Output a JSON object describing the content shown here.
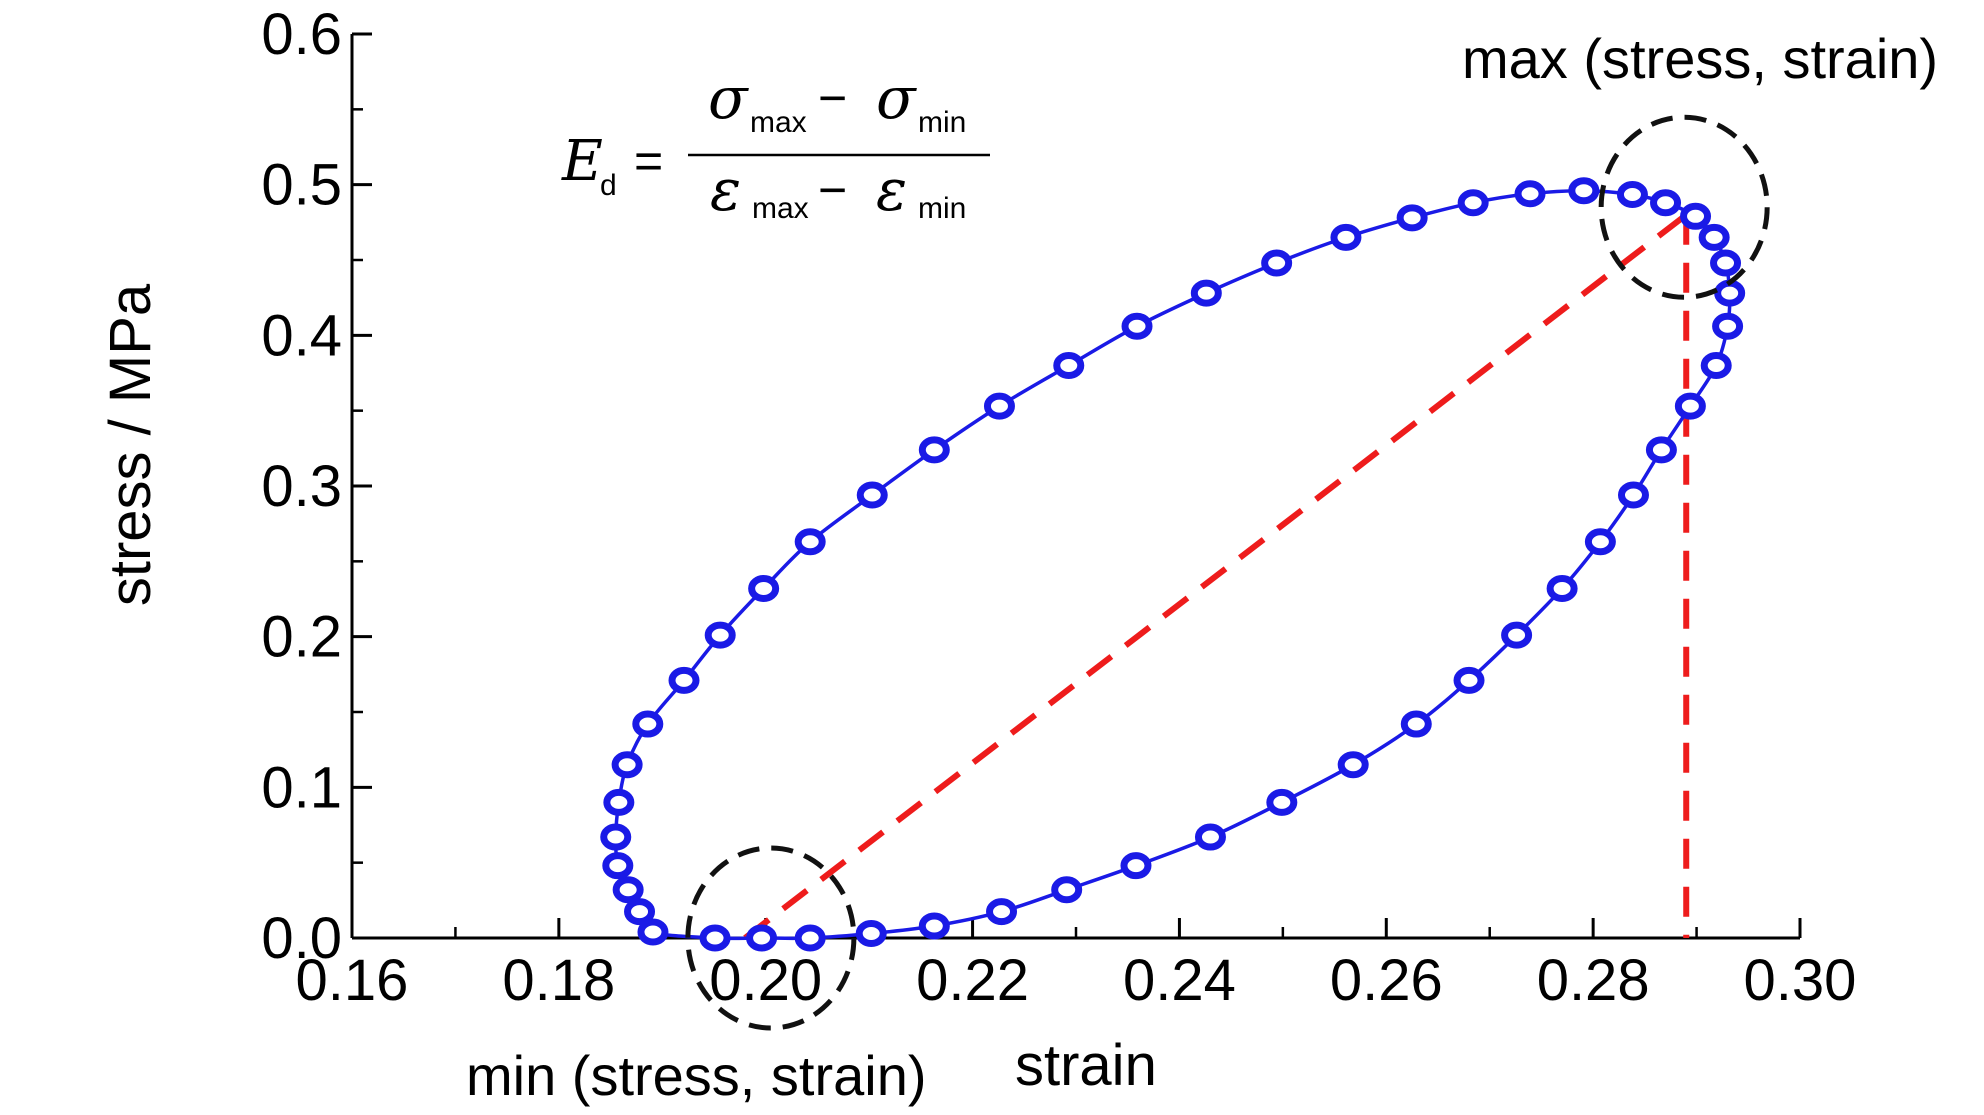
{
  "chart_data": {
    "type": "scatter",
    "xlabel": "strain",
    "ylabel": "stress / MPa",
    "xlim": [
      0.16,
      0.3
    ],
    "ylim": [
      0.0,
      0.6
    ],
    "x_ticks": [
      "0.16",
      "0.18",
      "0.20",
      "0.22",
      "0.24",
      "0.26",
      "0.28",
      "0.30"
    ],
    "y_ticks": [
      "0.0",
      "0.1",
      "0.2",
      "0.3",
      "0.4",
      "0.5",
      "0.6"
    ],
    "grid": false,
    "series": [
      {
        "style": "line with hollow circle markers",
        "color": "#1a1ae6",
        "points": [
          [
            0.1951,
            0.0
          ],
          [
            0.1891,
            0.004
          ],
          [
            0.1878,
            0.0175
          ],
          [
            0.1867,
            0.032
          ],
          [
            0.1857,
            0.048
          ],
          [
            0.1855,
            0.067
          ],
          [
            0.1858,
            0.09
          ],
          [
            0.1866,
            0.115
          ],
          [
            0.1886,
            0.142
          ],
          [
            0.1921,
            0.171
          ],
          [
            0.1956,
            0.201
          ],
          [
            0.1998,
            0.232
          ],
          [
            0.2043,
            0.263
          ],
          [
            0.2103,
            0.294
          ],
          [
            0.2163,
            0.324
          ],
          [
            0.2226,
            0.353
          ],
          [
            0.2293,
            0.38
          ],
          [
            0.2359,
            0.406
          ],
          [
            0.2426,
            0.428
          ],
          [
            0.2494,
            0.448
          ],
          [
            0.2561,
            0.465
          ],
          [
            0.2625,
            0.478
          ],
          [
            0.2684,
            0.488
          ],
          [
            0.2739,
            0.494
          ],
          [
            0.2791,
            0.496
          ],
          [
            0.2838,
            0.4935
          ],
          [
            0.287,
            0.488
          ],
          [
            0.2899,
            0.479
          ],
          [
            0.2917,
            0.465
          ],
          [
            0.2928,
            0.448
          ],
          [
            0.2932,
            0.428
          ],
          [
            0.293,
            0.406
          ],
          [
            0.2919,
            0.38
          ],
          [
            0.2894,
            0.353
          ],
          [
            0.2866,
            0.324
          ],
          [
            0.2839,
            0.294
          ],
          [
            0.2807,
            0.263
          ],
          [
            0.277,
            0.232
          ],
          [
            0.2726,
            0.201
          ],
          [
            0.268,
            0.171
          ],
          [
            0.2629,
            0.142
          ],
          [
            0.2568,
            0.115
          ],
          [
            0.2499,
            0.09
          ],
          [
            0.243,
            0.067
          ],
          [
            0.2358,
            0.048
          ],
          [
            0.2291,
            0.032
          ],
          [
            0.2228,
            0.0175
          ],
          [
            0.2163,
            0.008
          ],
          [
            0.2102,
            0.003
          ],
          [
            0.2043,
            0.0
          ],
          [
            0.1996,
            0.0
          ]
        ]
      },
      {
        "style": "dashed diagonal",
        "color": "#ee1c1c",
        "points": [
          [
            0.198,
            0.0
          ],
          [
            0.289,
            0.48
          ]
        ]
      },
      {
        "style": "dashed vertical",
        "color": "#ee1c1c",
        "points": [
          [
            0.289,
            0.48
          ],
          [
            0.289,
            0.0
          ]
        ]
      }
    ],
    "highlight_circles": [
      {
        "x": 0.2005,
        "y": 0.0,
        "color": "#111111"
      },
      {
        "x": 0.2888,
        "y": 0.485,
        "color": "#111111"
      }
    ],
    "annotations": {
      "max_label": "max (stress, strain)",
      "min_label": "min (stress, strain)"
    },
    "formula": {
      "lhs": "E",
      "lhs_sub": "d",
      "equals": "=",
      "num_a": "σ",
      "num_a_sub": "max",
      "num_op": "−",
      "num_b": "σ",
      "num_b_sub": "min",
      "den_a": "ε",
      "den_a_sub": "max",
      "den_op": "−",
      "den_b": "ε",
      "den_b_sub": "min"
    }
  }
}
